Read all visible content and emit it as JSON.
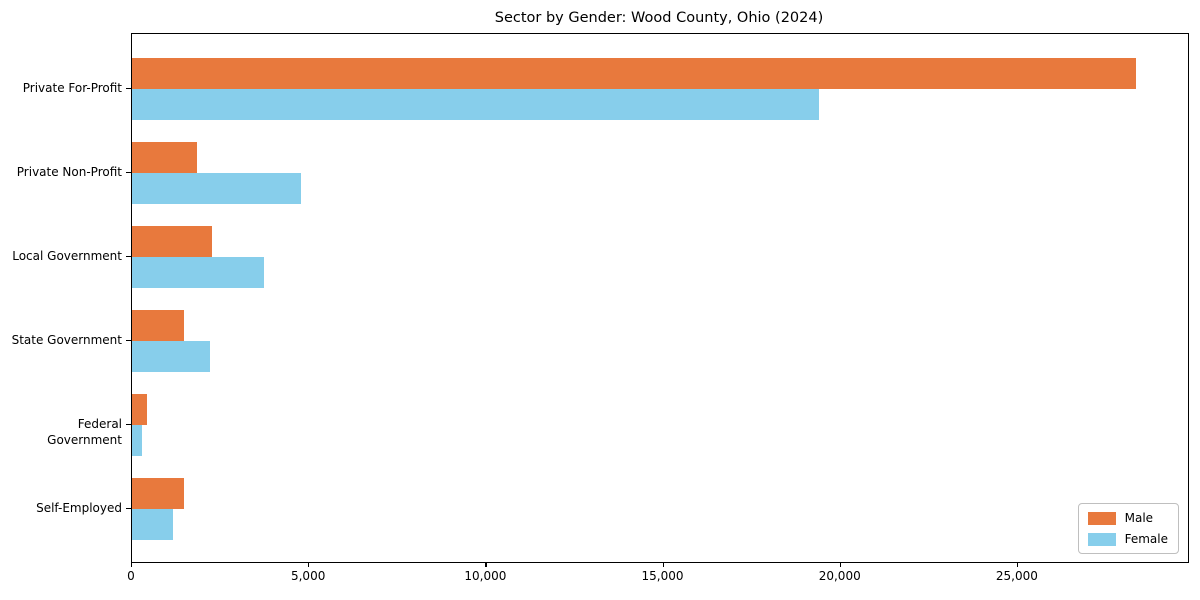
{
  "chart": {
    "background_color": "#ffffff",
    "axis_color": "#000000",
    "male_color": "#e8793d",
    "female_color": "#87ceeb"
  },
  "chart_data": {
    "type": "bar",
    "orientation": "horizontal",
    "title": "Sector by Gender: Wood County, Ohio (2024)",
    "categories": [
      "Private For-Profit",
      "Private Non-Profit",
      "Local Government",
      "State Government",
      "Federal Government",
      "Self-Employed"
    ],
    "series": [
      {
        "name": "Male",
        "color": "#e8793d",
        "values": [
          28340,
          1840,
          2260,
          1480,
          410,
          1480
        ]
      },
      {
        "name": "Female",
        "color": "#87ceeb",
        "values": [
          19390,
          4770,
          3720,
          2200,
          290,
          1150
        ]
      }
    ],
    "xlabel": "",
    "ylabel": "",
    "xlim": [
      0,
      29800
    ],
    "xticks": [
      0,
      5000,
      10000,
      15000,
      20000,
      25000
    ],
    "xtick_labels": [
      "0",
      "5,000",
      "10,000",
      "15,000",
      "20,000",
      "25,000"
    ],
    "grid": false,
    "legend_position": "lower right",
    "legend_entries": [
      {
        "label": "Male",
        "color": "#e8793d"
      },
      {
        "label": "Female",
        "color": "#87ceeb"
      }
    ]
  }
}
